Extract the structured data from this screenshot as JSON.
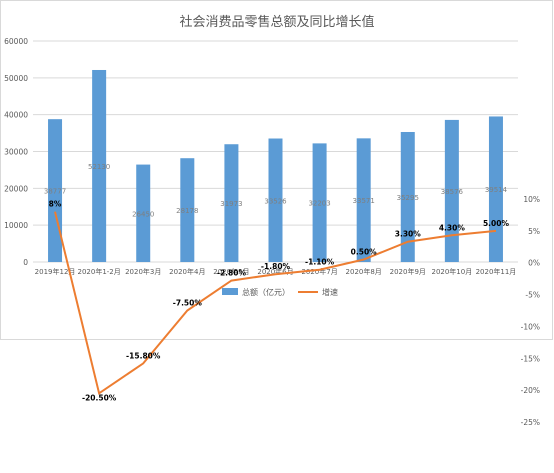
{
  "chart_data": {
    "type": "bar+line",
    "title": "社会消费品零售总额及同比增长值",
    "categories": [
      "2019年12月",
      "2020年1-2月",
      "2020年3月",
      "2020年4月",
      "2020年5月",
      "2020年6月",
      "2020年7月",
      "2020年8月",
      "2020年9月",
      "2020年10月",
      "2020年11月"
    ],
    "series": [
      {
        "name": "总额（亿元）",
        "type": "bar",
        "axis": "left",
        "color": "#5b9bd5",
        "values": [
          38777,
          52130,
          26450,
          28178,
          31973,
          33526,
          32203,
          33571,
          35295,
          38576,
          39514
        ],
        "labels": [
          "38777",
          "52130",
          "26450",
          "28178",
          "31973",
          "33526",
          "32203",
          "33571",
          "35295",
          "38576",
          "39514"
        ]
      },
      {
        "name": "增速",
        "type": "line",
        "axis": "right",
        "color": "#ed7d31",
        "values": [
          8,
          -20.5,
          -15.8,
          -7.5,
          -2.8,
          -1.8,
          -1.1,
          0.5,
          3.3,
          4.3,
          5.0
        ],
        "labels": [
          "8%",
          "-20.50%",
          "-15.80%",
          "-7.50%",
          "-2.80%",
          "-1.80%",
          "-1.10%",
          "0.50%",
          "3.30%",
          "4.30%",
          "5.00%"
        ]
      }
    ],
    "y_left": {
      "range": [
        0,
        60000
      ],
      "ticks": [
        "0",
        "10000",
        "20000",
        "30000",
        "40000",
        "50000",
        "60000"
      ]
    },
    "y_right": {
      "range": [
        -25,
        10
      ],
      "ticks": [
        "10%",
        "5%",
        "0%",
        "-5%",
        "-10%",
        "-15%",
        "-20%",
        "-25%"
      ]
    },
    "grid": true,
    "legend_position": "bottom-center",
    "legend": {
      "bar_label": "总额（亿元）",
      "line_label": "增速"
    }
  }
}
